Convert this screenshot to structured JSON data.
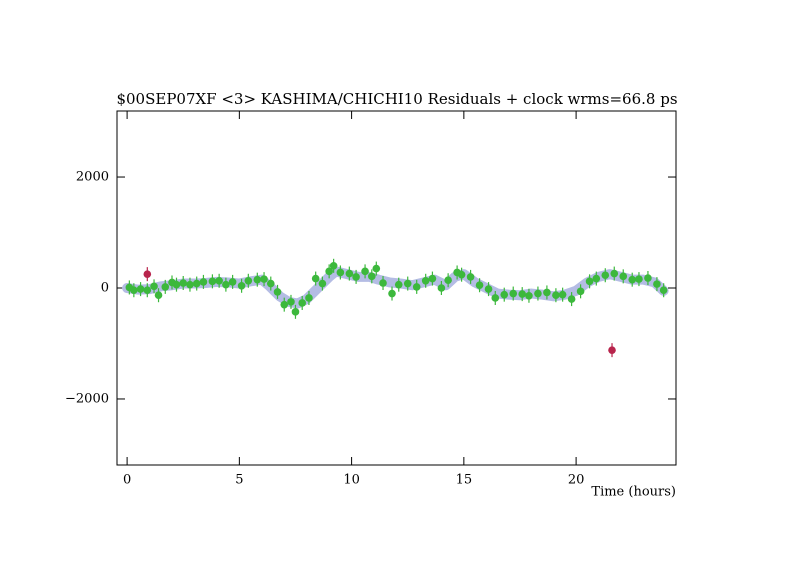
{
  "chart_data": {
    "type": "scatter",
    "title": "$00SEP07XF <3> KASHIMA/CHICHI10 Residuals + clock wrms=66.8  ps",
    "x_label": "Time (hours)",
    "xlim": [
      -0.45,
      24.45
    ],
    "xticks": [
      0,
      5,
      10,
      15,
      20
    ],
    "ylim": [
      -3190,
      3190
    ],
    "yticks": [
      {
        "value": -2000,
        "label": "−2000"
      },
      0,
      2000
    ],
    "series": [
      {
        "type": "line",
        "color": "#b4bce4",
        "x": [
          0,
          0.5,
          1,
          1.5,
          2,
          2.5,
          3,
          3.5,
          4,
          4.5,
          5,
          5.5,
          6,
          6.3,
          6.8,
          7.2,
          7.6,
          8,
          8.5,
          9,
          9.3,
          9.8,
          10.3,
          10.8,
          11.2,
          11.7,
          12.2,
          12.7,
          13.2,
          13.7,
          14.2,
          14.6,
          15,
          15.5,
          16,
          16.5,
          17,
          17.5,
          18,
          18.5,
          19,
          19.5,
          20,
          20.5,
          21,
          21.5,
          22,
          22.5,
          23,
          23.5,
          23.9
        ],
        "values": [
          0,
          -30,
          -20,
          30,
          50,
          80,
          80,
          90,
          110,
          100,
          80,
          120,
          150,
          50,
          -150,
          -250,
          -280,
          -200,
          0,
          200,
          300,
          250,
          200,
          200,
          150,
          100,
          80,
          50,
          100,
          150,
          50,
          200,
          250,
          100,
          0,
          -100,
          -120,
          -130,
          -100,
          -120,
          -150,
          -120,
          -50,
          100,
          200,
          250,
          200,
          150,
          150,
          100,
          -50
        ]
      },
      {
        "type": "scatter",
        "color": "#3cb83c",
        "x": [
          0.1,
          0.3,
          0.6,
          0.9,
          1.2,
          1.4,
          1.7,
          2.0,
          2.2,
          2.5,
          2.8,
          3.1,
          3.4,
          3.8,
          4.1,
          4.4,
          4.7,
          5.1,
          5.4,
          5.8,
          6.1,
          6.4,
          6.7,
          7.0,
          7.3,
          7.5,
          7.8,
          8.1,
          8.4,
          8.7,
          9.0,
          9.2,
          9.5,
          9.9,
          10.2,
          10.6,
          10.9,
          11.1,
          11.4,
          11.8,
          12.1,
          12.5,
          12.9,
          13.3,
          13.6,
          14.0,
          14.3,
          14.7,
          14.9,
          15.3,
          15.7,
          16.1,
          16.4,
          16.8,
          17.2,
          17.6,
          17.9,
          18.3,
          18.7,
          19.1,
          19.4,
          19.8,
          20.2,
          20.6,
          20.9,
          21.3,
          21.7,
          22.1,
          22.5,
          22.8,
          23.2,
          23.6,
          23.9
        ],
        "values": [
          10,
          -40,
          -20,
          -40,
          30,
          -130,
          20,
          100,
          60,
          90,
          60,
          80,
          110,
          120,
          130,
          60,
          110,
          40,
          130,
          150,
          160,
          80,
          -70,
          -300,
          -250,
          -430,
          -270,
          -180,
          170,
          80,
          300,
          400,
          280,
          260,
          200,
          300,
          210,
          350,
          90,
          -100,
          60,
          80,
          20,
          130,
          170,
          0,
          140,
          280,
          240,
          200,
          50,
          -20,
          -180,
          -120,
          -100,
          -110,
          -140,
          -100,
          -80,
          -130,
          -120,
          -200,
          -60,
          120,
          170,
          230,
          260,
          210,
          150,
          160,
          180,
          70,
          -40
        ]
      },
      {
        "type": "scatter",
        "color": "#b8244c",
        "x": [
          0.9,
          21.6
        ],
        "values": [
          250,
          -1120
        ]
      }
    ]
  }
}
